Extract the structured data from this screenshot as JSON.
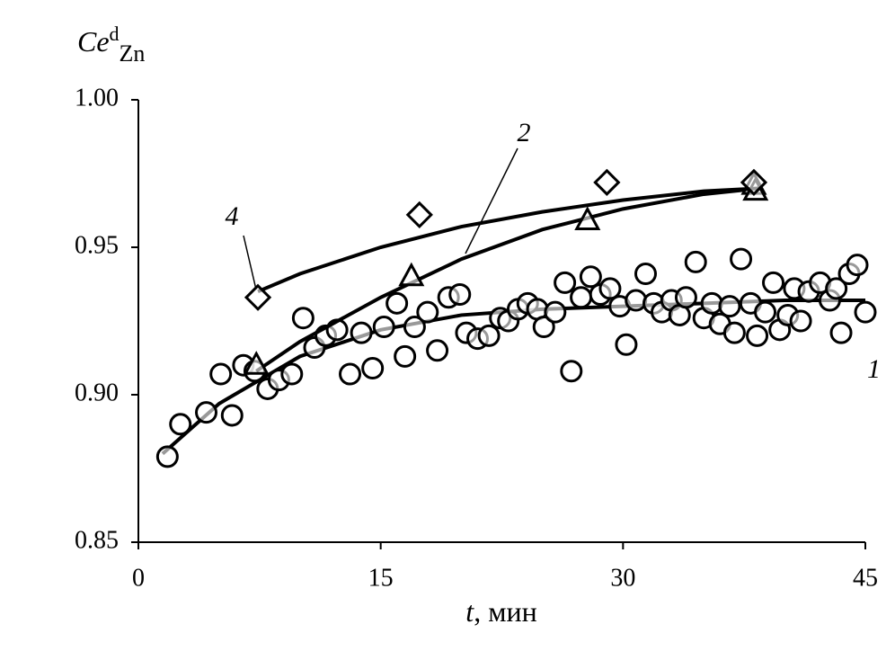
{
  "chart_data": {
    "type": "scatter",
    "y_label": {
      "main": "Ce",
      "sup": "d",
      "sub": "Zn"
    },
    "x_label": {
      "var": "t",
      "unit": ", мин"
    },
    "xlim": [
      0,
      45
    ],
    "xticks": [
      0,
      15,
      30,
      45
    ],
    "ylim": [
      0.85,
      1.0
    ],
    "yticks": [
      {
        "value": 0.85,
        "label": "0.85"
      },
      {
        "value": 0.9,
        "label": "0.90"
      },
      {
        "value": 0.95,
        "label": "0.95"
      },
      {
        "value": 1.0,
        "label": "1.00"
      }
    ],
    "color": "#000000",
    "series": [
      {
        "name": "1",
        "marker": "circle",
        "x": [
          1.8,
          2.6,
          4.2,
          5.1,
          5.8,
          6.5,
          7.2,
          8.0,
          8.7,
          9.5,
          10.2,
          10.9,
          11.6,
          12.3,
          13.1,
          13.8,
          14.5,
          15.2,
          16.0,
          16.5,
          17.1,
          17.9,
          18.5,
          19.2,
          19.9,
          20.3,
          21.0,
          21.7,
          22.4,
          22.9,
          23.5,
          24.1,
          24.7,
          25.1,
          25.8,
          26.4,
          26.8,
          27.4,
          28.0,
          28.6,
          29.2,
          29.8,
          30.2,
          30.8,
          31.4,
          31.9,
          32.4,
          33.0,
          33.5,
          33.9,
          34.5,
          35.0,
          35.5,
          36.0,
          36.6,
          36.9,
          37.3,
          37.9,
          38.3,
          38.8,
          39.3,
          39.7,
          40.2,
          40.6,
          41.0,
          41.5,
          42.2,
          42.8,
          43.2,
          43.5,
          44.0,
          44.5,
          45.0
        ],
        "values": [
          0.879,
          0.89,
          0.894,
          0.907,
          0.893,
          0.91,
          0.908,
          0.902,
          0.905,
          0.907,
          0.926,
          0.916,
          0.92,
          0.922,
          0.907,
          0.921,
          0.909,
          0.923,
          0.931,
          0.913,
          0.923,
          0.928,
          0.915,
          0.933,
          0.934,
          0.921,
          0.919,
          0.92,
          0.926,
          0.925,
          0.929,
          0.931,
          0.929,
          0.923,
          0.928,
          0.938,
          0.908,
          0.933,
          0.94,
          0.934,
          0.936,
          0.93,
          0.917,
          0.932,
          0.941,
          0.931,
          0.928,
          0.932,
          0.927,
          0.933,
          0.945,
          0.926,
          0.931,
          0.924,
          0.93,
          0.921,
          0.946,
          0.931,
          0.92,
          0.928,
          0.938,
          0.922,
          0.927,
          0.936,
          0.925,
          0.935,
          0.938,
          0.932,
          0.936,
          0.921,
          0.941,
          0.944,
          0.928
        ],
        "fit": {
          "x": [
            1.5,
            5,
            10,
            15,
            20,
            25,
            30,
            35,
            40,
            45
          ],
          "values": [
            0.88,
            0.897,
            0.913,
            0.922,
            0.927,
            0.929,
            0.93,
            0.931,
            0.932,
            0.932
          ]
        }
      },
      {
        "name": "2",
        "marker": "triangle",
        "x": [
          7.3,
          16.9,
          27.8,
          38.1,
          38.2
        ],
        "values": [
          0.91,
          0.94,
          0.959,
          0.971,
          0.969
        ],
        "fit": {
          "x": [
            7.3,
            10,
            15,
            20,
            25,
            30,
            35,
            38.5
          ],
          "values": [
            0.908,
            0.918,
            0.933,
            0.946,
            0.956,
            0.963,
            0.968,
            0.97
          ]
        }
      },
      {
        "name": "4",
        "marker": "diamond",
        "x": [
          7.4,
          17.4,
          29.0,
          38.1
        ],
        "values": [
          0.933,
          0.961,
          0.972,
          0.972
        ],
        "fit": {
          "x": [
            7.4,
            10,
            15,
            20,
            25,
            30,
            35,
            38.5
          ],
          "values": [
            0.935,
            0.941,
            0.95,
            0.957,
            0.962,
            0.966,
            0.969,
            0.97
          ]
        }
      }
    ]
  }
}
